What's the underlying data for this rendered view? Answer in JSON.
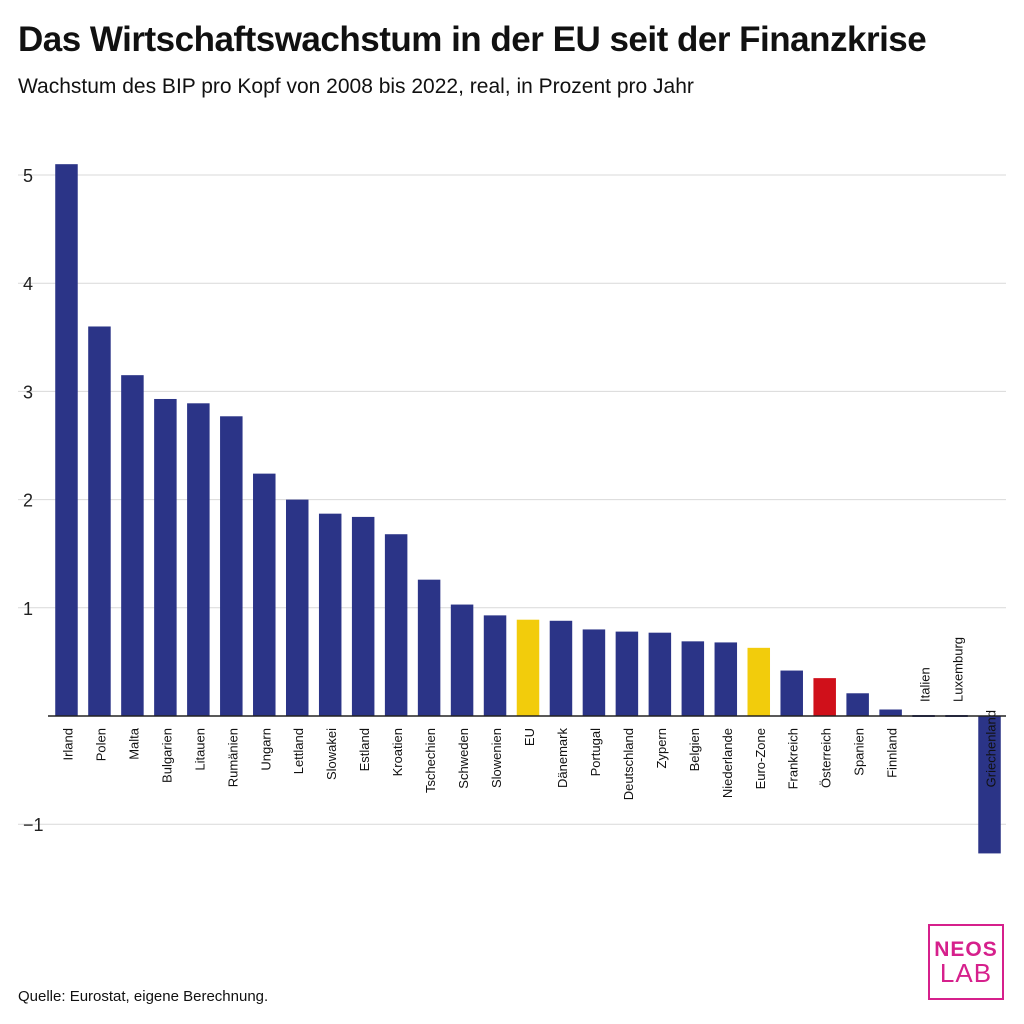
{
  "title": "Das Wirtschaftswachstum in der EU seit der Finanzkrise",
  "subtitle": "Wachstum des BIP pro Kopf von 2008 bis 2022, real, in Prozent pro Jahr",
  "source": "Quelle: Eurostat, eigene Berechnung.",
  "logo": {
    "line1": "NEOS",
    "line2": "LAB"
  },
  "colors": {
    "default": "#2b3487",
    "eu": "#f2cc0c",
    "austria": "#d0101a",
    "grid": "#d9d9d9",
    "axis": "#222222"
  },
  "chart_data": {
    "type": "bar",
    "title": "Das Wirtschaftswachstum in der EU seit der Finanzkrise",
    "ylim": [
      -1.3,
      5.1
    ],
    "yticks": [
      5,
      4,
      3,
      2,
      1,
      -1
    ],
    "yticklabels": [
      "5",
      "4",
      "3",
      "2",
      "1",
      "−1"
    ],
    "grid": true,
    "categories": [
      "Irland",
      "Polen",
      "Malta",
      "Bulgarien",
      "Litauen",
      "Rumänien",
      "Ungarn",
      "Lettland",
      "Slowakei",
      "Estland",
      "Kroatien",
      "Tschechien",
      "Schweden",
      "Slowenien",
      "EU",
      "Dänemark",
      "Portugal",
      "Deutschland",
      "Zypern",
      "Belgien",
      "Niederlande",
      "Euro-Zone",
      "Frankreich",
      "Österreich",
      "Spanien",
      "Finnland",
      "Italien",
      "Luxemburg",
      "Griechenland"
    ],
    "values": [
      5.1,
      3.6,
      3.15,
      2.93,
      2.89,
      2.77,
      2.24,
      2.0,
      1.87,
      1.84,
      1.68,
      1.26,
      1.03,
      0.93,
      0.89,
      0.88,
      0.8,
      0.78,
      0.77,
      0.69,
      0.68,
      0.63,
      0.42,
      0.35,
      0.21,
      0.06,
      -0.01,
      -0.01,
      -1.27
    ],
    "highlight": {
      "EU": "eu",
      "Euro-Zone": "eu",
      "Österreich": "austria"
    }
  }
}
